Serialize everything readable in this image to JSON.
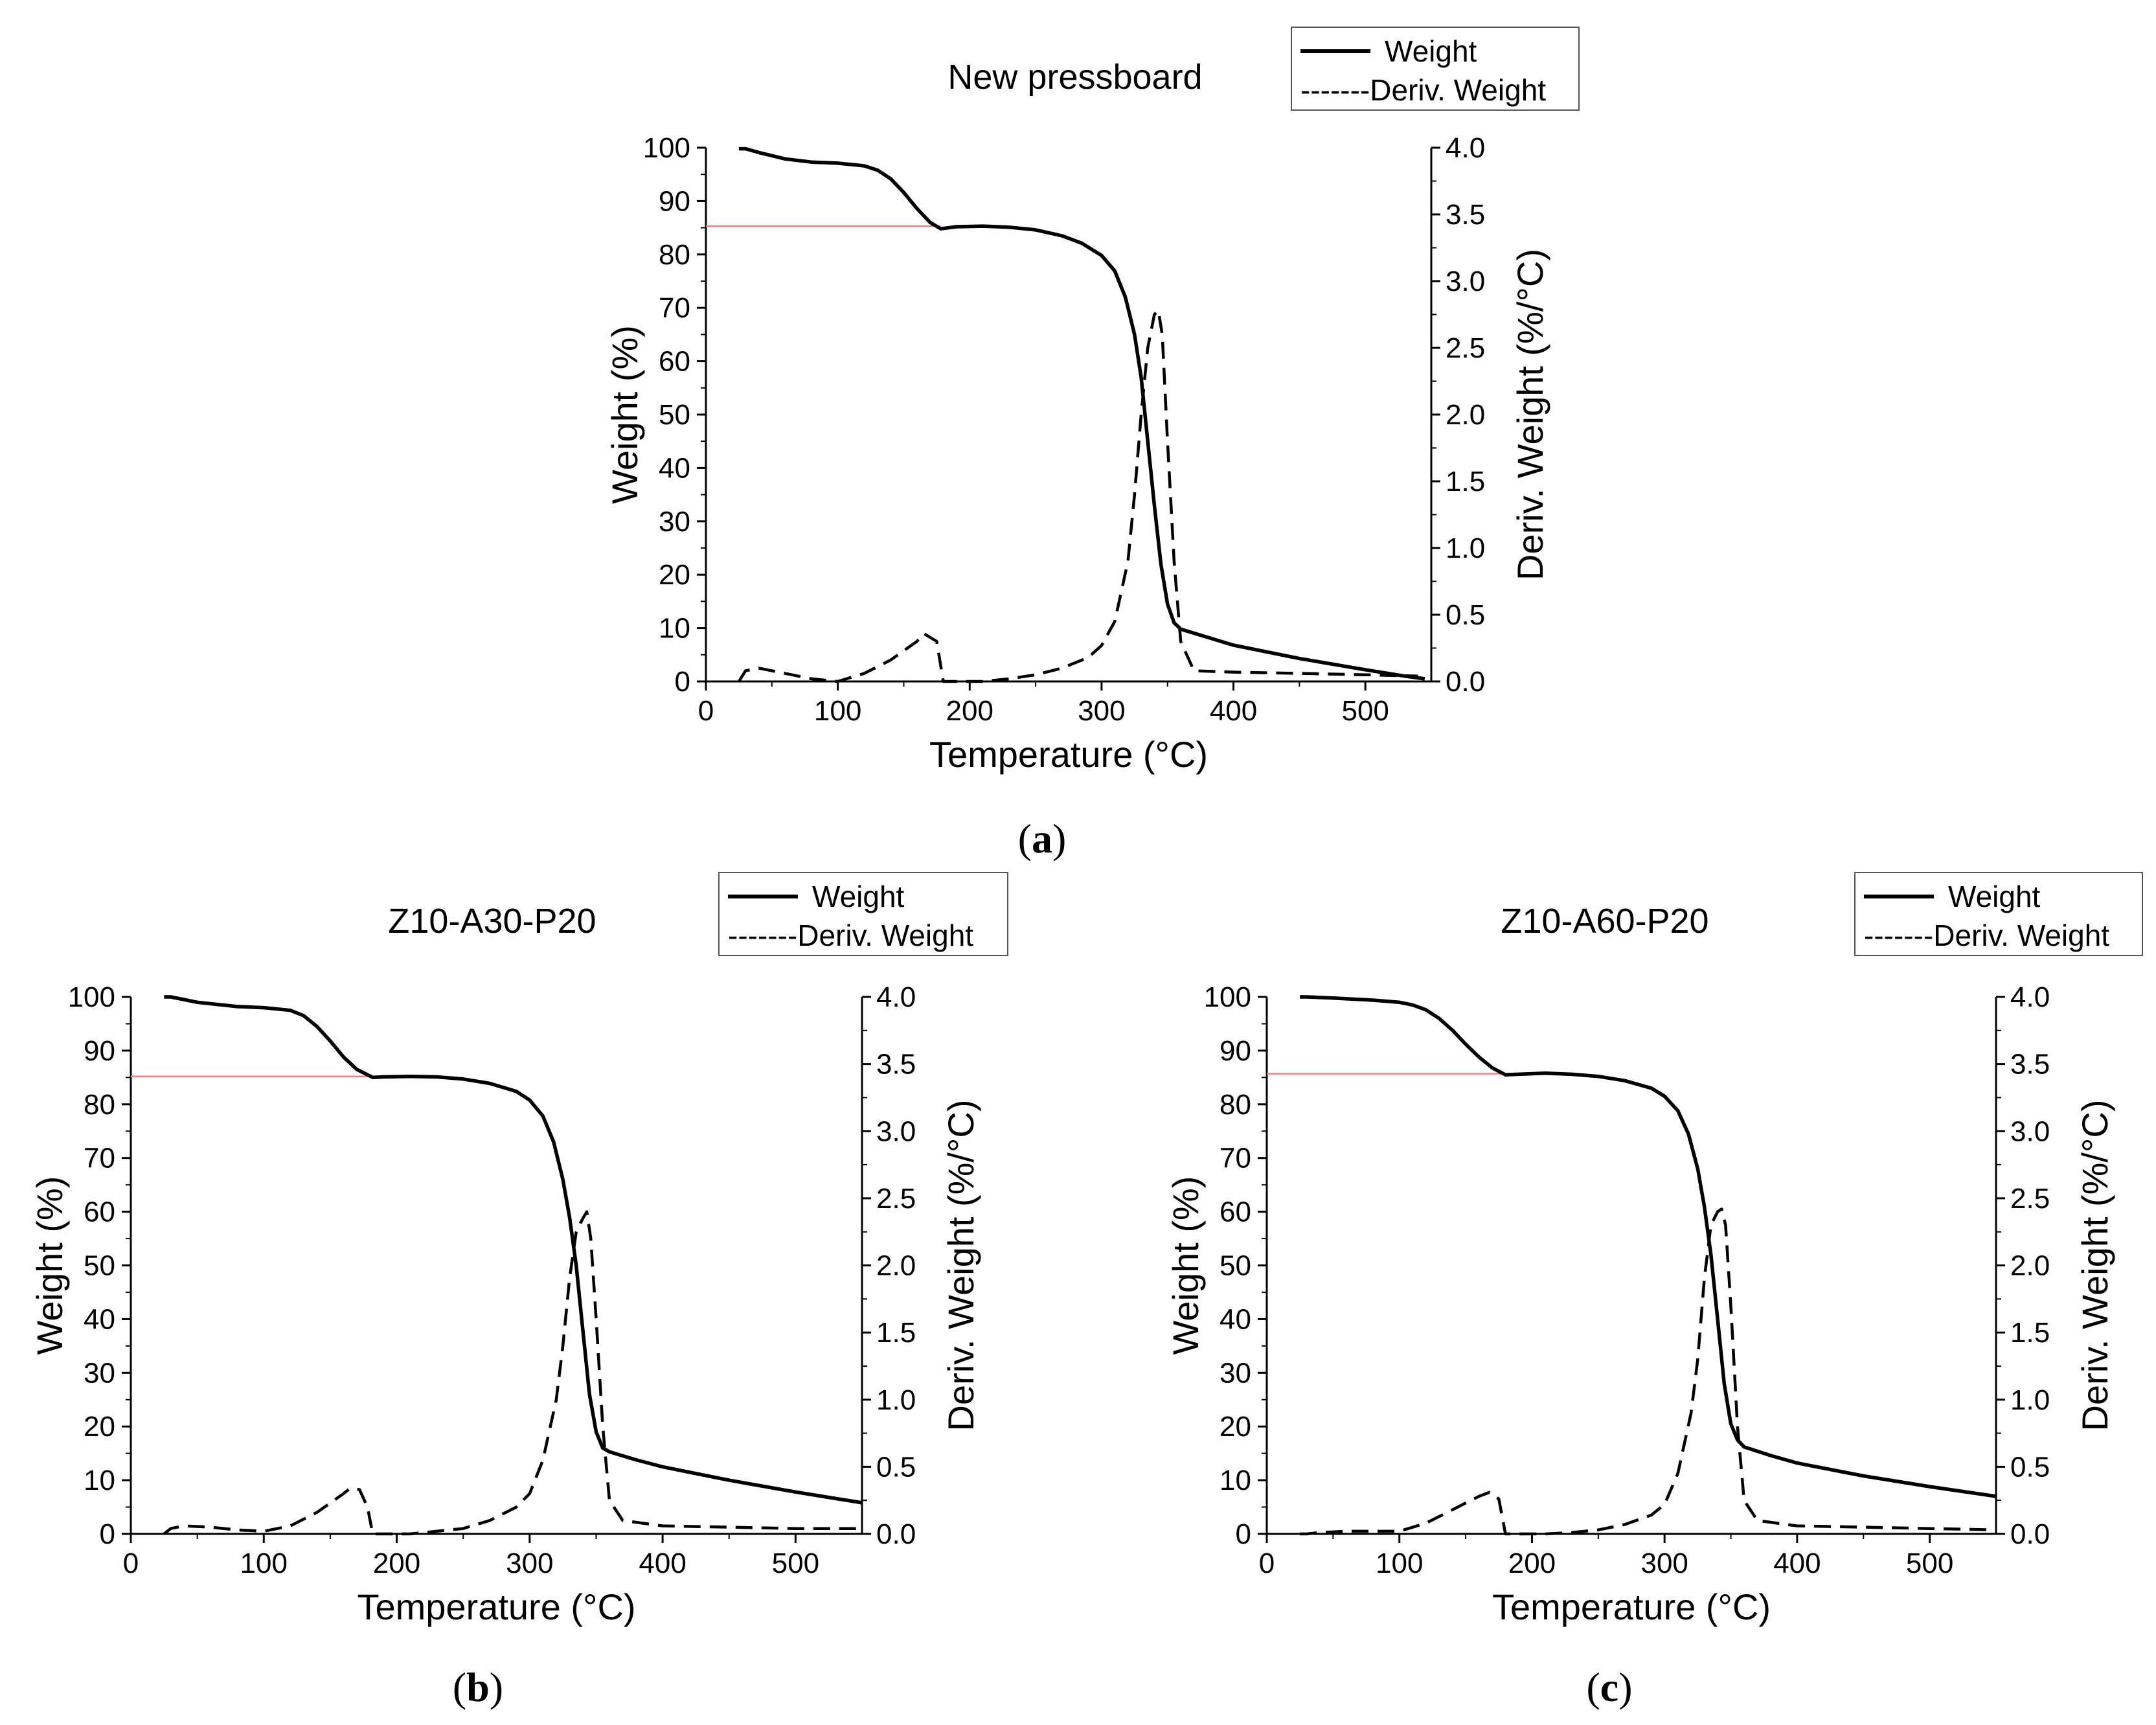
{
  "colors": {
    "line": "#000000",
    "reference": "#f08080",
    "background": "#ffffff"
  },
  "chart_data": [
    {
      "type": "line",
      "panel_label": "a",
      "title": "New pressboard",
      "xlabel": "Temperature (°C)",
      "ylabel": "Weight (%)",
      "y2label": "Deriv. Weight (%/°C)",
      "xlim": [
        0,
        550
      ],
      "ylim": [
        0,
        100
      ],
      "y2lim": [
        0,
        4.0
      ],
      "xticks": [
        "0",
        "100",
        "200",
        "300",
        "400",
        "500"
      ],
      "yticks": [
        "0",
        "10",
        "20",
        "30",
        "40",
        "50",
        "60",
        "70",
        "80",
        "90",
        "100"
      ],
      "y2ticks": [
        "0.0",
        "0.5",
        "1.0",
        "1.5",
        "2.0",
        "2.5",
        "3.0",
        "3.5",
        "4.0"
      ],
      "legend": {
        "position": "top-right",
        "entries": [
          "Weight",
          "-------Deriv. Weight"
        ]
      },
      "reference_line": {
        "y": 85.3,
        "x_range": [
          0,
          178
        ]
      },
      "series": [
        {
          "name": "Weight",
          "axis": "left",
          "style": "solid",
          "x": [
            25,
            30,
            40,
            60,
            80,
            100,
            120,
            130,
            140,
            150,
            160,
            170,
            178,
            190,
            210,
            230,
            250,
            270,
            285,
            300,
            310,
            318,
            325,
            330,
            335,
            340,
            345,
            350,
            355,
            360,
            380,
            400,
            450,
            500,
            530,
            545
          ],
          "y": [
            99.8,
            99.8,
            99.1,
            97.9,
            97.3,
            97.1,
            96.6,
            95.8,
            94.2,
            91.6,
            88.6,
            86.0,
            84.8,
            85.2,
            85.3,
            85.1,
            84.6,
            83.5,
            82.1,
            79.8,
            76.9,
            72.0,
            65.0,
            57.0,
            45.0,
            33.0,
            22.0,
            14.5,
            11.0,
            9.8,
            8.3,
            6.8,
            4.3,
            2.2,
            1.0,
            0.5
          ]
        },
        {
          "name": "Deriv. Weight",
          "axis": "right",
          "style": "dashed",
          "x": [
            25,
            30,
            40,
            60,
            80,
            100,
            120,
            140,
            160,
            165,
            170,
            175,
            180,
            190,
            210,
            230,
            250,
            270,
            290,
            300,
            310,
            320,
            325,
            330,
            335,
            340,
            343,
            346,
            350,
            355,
            360,
            370,
            400,
            450,
            500,
            540
          ],
          "y": [
            0.0,
            0.08,
            0.1,
            0.06,
            0.02,
            0.0,
            0.06,
            0.16,
            0.3,
            0.36,
            0.33,
            0.3,
            0.0,
            0.0,
            0.0,
            0.02,
            0.05,
            0.1,
            0.18,
            0.27,
            0.45,
            0.9,
            1.4,
            2.0,
            2.5,
            2.75,
            2.78,
            2.6,
            1.8,
            0.9,
            0.3,
            0.08,
            0.07,
            0.06,
            0.05,
            0.04
          ]
        }
      ]
    },
    {
      "type": "line",
      "panel_label": "b",
      "title": "Z10-A30-P20",
      "xlabel": "Temperature (°C)",
      "ylabel": "Weight (%)",
      "y2label": "Deriv. Weight (%/°C)",
      "xlim": [
        0,
        550
      ],
      "ylim": [
        0,
        100
      ],
      "y2lim": [
        0,
        4.0
      ],
      "xticks": [
        "0",
        "100",
        "200",
        "300",
        "400",
        "500"
      ],
      "yticks": [
        "0",
        "10",
        "20",
        "30",
        "40",
        "50",
        "60",
        "70",
        "80",
        "90",
        "100"
      ],
      "y2ticks": [
        "0.0",
        "0.5",
        "1.0",
        "1.5",
        "2.0",
        "2.5",
        "3.0",
        "3.5",
        "4.0"
      ],
      "legend": {
        "position": "top-right",
        "entries": [
          "Weight",
          "-------Deriv. Weight"
        ]
      },
      "reference_line": {
        "y": 85.2,
        "x_range": [
          0,
          182
        ]
      },
      "series": [
        {
          "name": "Weight",
          "axis": "left",
          "style": "solid",
          "x": [
            25,
            30,
            50,
            80,
            100,
            120,
            130,
            140,
            150,
            160,
            170,
            182,
            190,
            210,
            230,
            250,
            270,
            290,
            300,
            310,
            318,
            325,
            330,
            335,
            340,
            345,
            350,
            355,
            360,
            380,
            400,
            450,
            500,
            550
          ],
          "y": [
            100.0,
            100.0,
            99.0,
            98.2,
            98.0,
            97.5,
            96.5,
            94.5,
            91.8,
            88.8,
            86.5,
            85.0,
            85.1,
            85.2,
            85.1,
            84.7,
            83.9,
            82.4,
            80.8,
            77.8,
            73.0,
            66.0,
            59.0,
            50.0,
            38.0,
            26.0,
            19.0,
            16.0,
            15.3,
            13.8,
            12.5,
            10.0,
            7.8,
            5.8
          ]
        },
        {
          "name": "Deriv. Weight",
          "axis": "right",
          "style": "dashed",
          "x": [
            25,
            30,
            40,
            60,
            80,
            100,
            120,
            140,
            160,
            165,
            172,
            178,
            182,
            190,
            210,
            230,
            250,
            270,
            290,
            300,
            310,
            320,
            325,
            330,
            335,
            340,
            343,
            346,
            350,
            355,
            360,
            370,
            400,
            450,
            500,
            550
          ],
          "y": [
            0.0,
            0.04,
            0.06,
            0.05,
            0.03,
            0.02,
            0.06,
            0.16,
            0.3,
            0.34,
            0.33,
            0.2,
            0.0,
            0.0,
            0.0,
            0.02,
            0.04,
            0.1,
            0.2,
            0.3,
            0.55,
            1.0,
            1.4,
            1.9,
            2.25,
            2.35,
            2.4,
            2.2,
            1.6,
            0.8,
            0.25,
            0.1,
            0.06,
            0.05,
            0.04,
            0.04
          ]
        }
      ]
    },
    {
      "type": "line",
      "panel_label": "c",
      "title": "Z10-A60-P20",
      "xlabel": "Temperature (°C)",
      "ylabel": "Weight (%)",
      "y2label": "Deriv. Weight (%/°C)",
      "xlim": [
        0,
        550
      ],
      "ylim": [
        0,
        100
      ],
      "y2lim": [
        0,
        4.0
      ],
      "xticks": [
        "0",
        "100",
        "200",
        "300",
        "400",
        "500"
      ],
      "yticks": [
        "0",
        "10",
        "20",
        "30",
        "40",
        "50",
        "60",
        "70",
        "80",
        "90",
        "100"
      ],
      "y2ticks": [
        "0.0",
        "0.5",
        "1.0",
        "1.5",
        "2.0",
        "2.5",
        "3.0",
        "3.5",
        "4.0"
      ],
      "legend": {
        "position": "top-right",
        "entries": [
          "Weight",
          "-------Deriv. Weight"
        ]
      },
      "reference_line": {
        "y": 85.7,
        "x_range": [
          0,
          180
        ]
      },
      "series": [
        {
          "name": "Weight",
          "axis": "left",
          "style": "solid",
          "x": [
            25,
            30,
            50,
            80,
            100,
            110,
            120,
            130,
            140,
            150,
            160,
            170,
            180,
            190,
            210,
            230,
            250,
            270,
            290,
            300,
            310,
            318,
            325,
            330,
            335,
            340,
            345,
            350,
            355,
            360,
            380,
            400,
            450,
            500,
            550
          ],
          "y": [
            100.0,
            100.0,
            99.8,
            99.4,
            99.0,
            98.5,
            97.6,
            96.0,
            93.8,
            91.2,
            88.8,
            86.8,
            85.5,
            85.6,
            85.8,
            85.6,
            85.2,
            84.4,
            83.0,
            81.5,
            78.8,
            74.5,
            68.0,
            61.0,
            52.0,
            40.0,
            28.0,
            20.5,
            17.5,
            16.2,
            14.6,
            13.2,
            10.8,
            8.8,
            7.0
          ]
        },
        {
          "name": "Deriv. Weight",
          "axis": "right",
          "style": "dashed",
          "x": [
            25,
            30,
            40,
            60,
            80,
            100,
            120,
            140,
            160,
            168,
            175,
            180,
            190,
            210,
            230,
            250,
            270,
            290,
            300,
            310,
            320,
            325,
            330,
            335,
            340,
            343,
            346,
            350,
            355,
            360,
            370,
            400,
            450,
            500,
            550
          ],
          "y": [
            0.0,
            0.0,
            0.01,
            0.02,
            0.02,
            0.02,
            0.08,
            0.18,
            0.28,
            0.31,
            0.26,
            0.0,
            0.0,
            0.0,
            0.01,
            0.03,
            0.07,
            0.14,
            0.22,
            0.45,
            0.9,
            1.3,
            1.9,
            2.3,
            2.4,
            2.42,
            2.3,
            1.7,
            0.8,
            0.25,
            0.1,
            0.06,
            0.05,
            0.04,
            0.03
          ]
        }
      ]
    }
  ]
}
